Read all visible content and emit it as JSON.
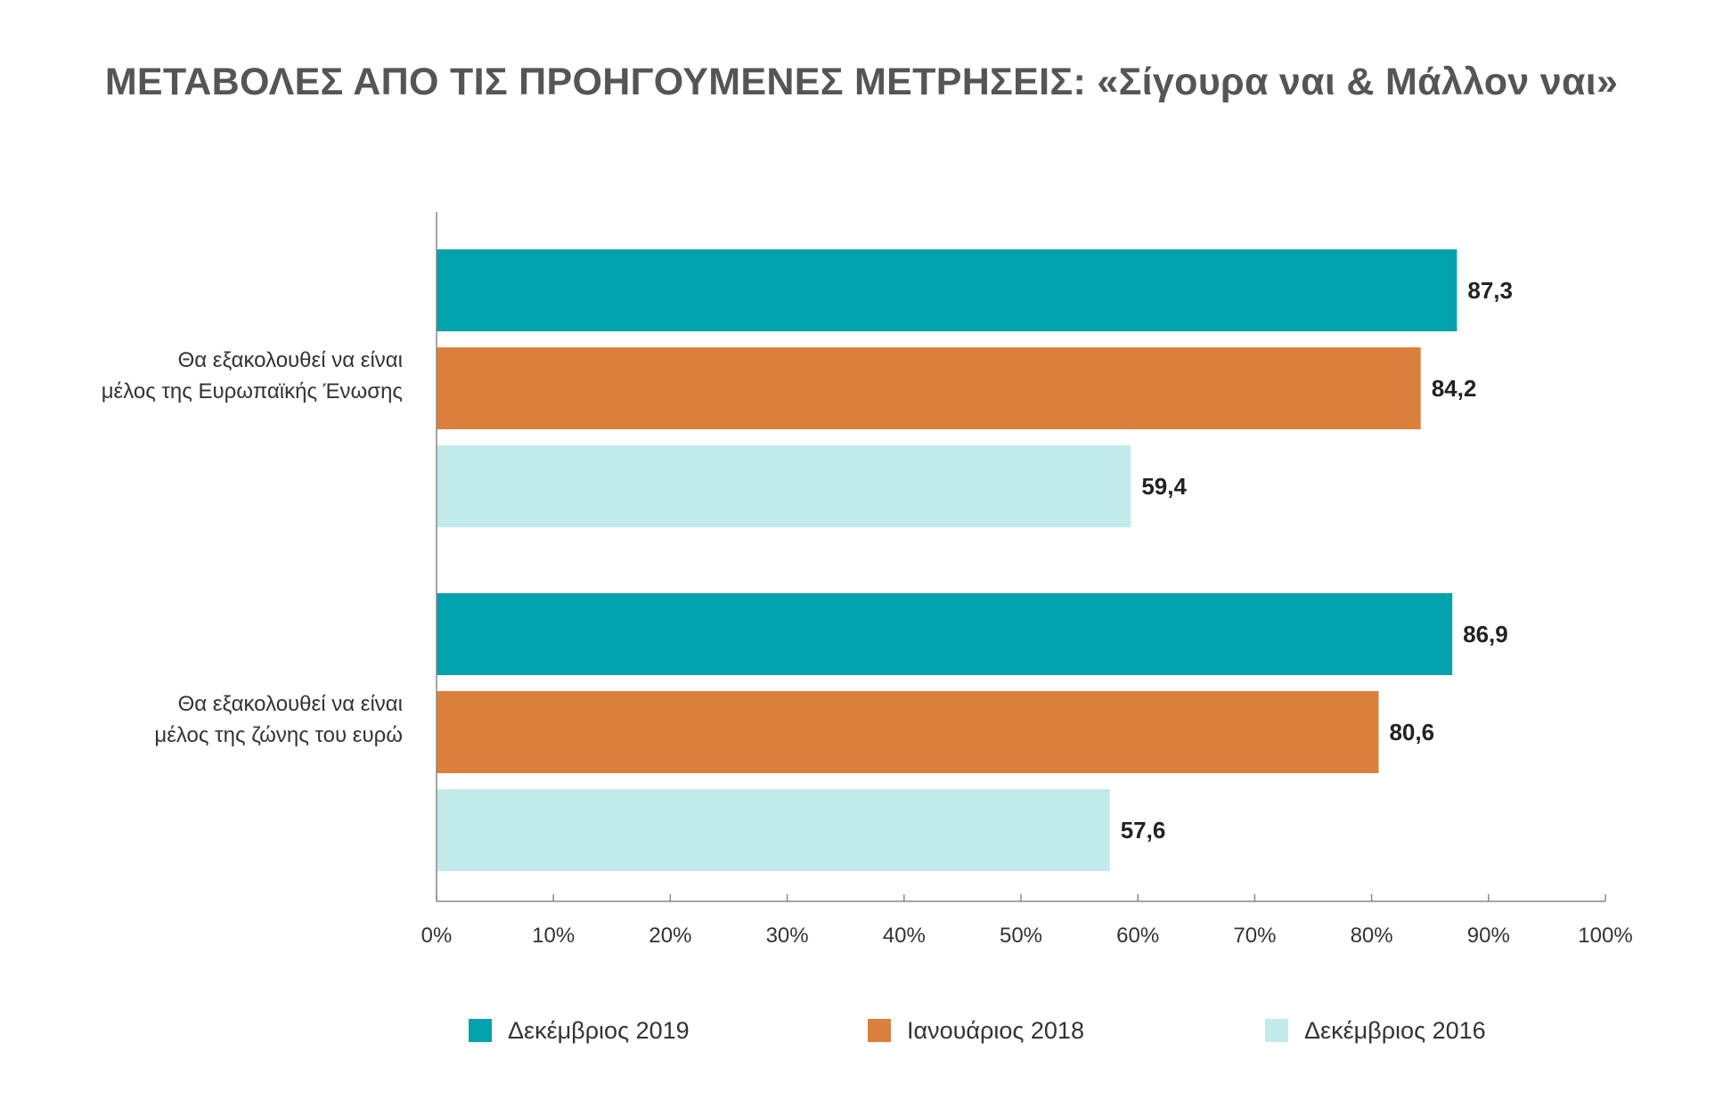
{
  "chart_data": {
    "type": "bar",
    "orientation": "horizontal",
    "title": "ΜΕΤΑΒΟΛΕΣ ΑΠΟ ΤΙΣ ΠΡΟΗΓΟΥΜΕΝΕΣ ΜΕΤΡΗΣΕΙΣ: «Σίγουρα ναι & Μάλλον ναι»",
    "categories": [
      [
        "Θα εξακολουθεί να είναι",
        "μέλος της Ευρωπαϊκής Ένωσης"
      ],
      [
        "Θα εξακολουθεί να είναι",
        "μέλος της ζώνης του ευρώ"
      ]
    ],
    "series": [
      {
        "name": "Δεκέμβριος 2019",
        "color": "#00A2AD",
        "values": [
          87.3,
          86.9
        ],
        "labels": [
          "87,3",
          "86,9"
        ]
      },
      {
        "name": "Ιανουάριος 2018",
        "color": "#DB7F3D",
        "values": [
          84.2,
          80.6
        ],
        "labels": [
          "84,2",
          "80,6"
        ]
      },
      {
        "name": "Δεκέμβριος 2016",
        "color": "#C3EAEA",
        "values": [
          59.4,
          57.6
        ],
        "labels": [
          "59,4",
          "57,6"
        ]
      }
    ],
    "xlim": [
      0,
      100
    ],
    "xticks": [
      "0%",
      "10%",
      "20%",
      "30%",
      "40%",
      "50%",
      "60%",
      "70%",
      "80%",
      "90%",
      "100%"
    ],
    "grid": false,
    "legend_position": "bottom"
  }
}
